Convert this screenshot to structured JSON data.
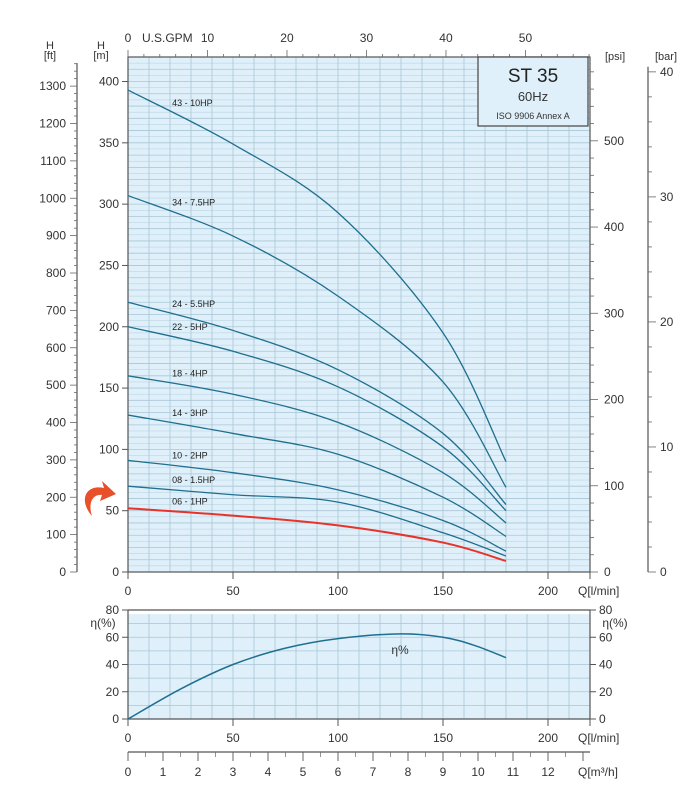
{
  "info_box": {
    "model": "ST 35",
    "frequency": "60Hz",
    "standard": "ISO 9906 Annex A"
  },
  "axes": {
    "h_ft": {
      "label_1": "H",
      "label_2": "[ft]",
      "range": [
        0,
        1300
      ],
      "ticks": [
        0,
        100,
        200,
        300,
        400,
        500,
        600,
        700,
        800,
        900,
        1000,
        1100,
        1200,
        1300
      ]
    },
    "h_m": {
      "label_1": "H",
      "label_2": "[m]",
      "range": [
        0,
        420
      ],
      "ticks": [
        0,
        50,
        100,
        150,
        200,
        250,
        300,
        350,
        400
      ]
    },
    "psi": {
      "label": "[psi]",
      "ticks": [
        0,
        100,
        200,
        300,
        400,
        500
      ]
    },
    "bar": {
      "label": "[bar]",
      "ticks": [
        0,
        10,
        20,
        30,
        40
      ]
    },
    "gpm": {
      "label": "U.S.GPM",
      "ticks": [
        0,
        10,
        20,
        30,
        40,
        50
      ]
    },
    "q_lmin": {
      "label": "Q[l/min]",
      "range": [
        0,
        220
      ],
      "ticks": [
        0,
        50,
        100,
        150,
        200
      ]
    },
    "q_m3h": {
      "label": "Q[m³/h]",
      "ticks": [
        0,
        1,
        2,
        3,
        4,
        5,
        6,
        7,
        8,
        9,
        10,
        11,
        12
      ]
    },
    "eta": {
      "label": "η(%)",
      "range": [
        0,
        80
      ],
      "ticks": [
        0,
        20,
        40,
        60,
        80
      ]
    }
  },
  "colors": {
    "plot_bg": "#dff0fa",
    "grid": "#a9c6d6",
    "curve": "#1f6f8f",
    "highlight": "#e8332a",
    "arrow": "#e8502a"
  },
  "highlight_marker": {
    "icon": "curved-arrow-icon",
    "points_to": "06 - 1HP"
  },
  "chart_data": [
    {
      "type": "line",
      "title": "ST 35",
      "xlabel": "Q[l/min]",
      "ylabel": "H [m]",
      "xlim": [
        0,
        220
      ],
      "ylim": [
        0,
        420
      ],
      "grid": true,
      "x": [
        0,
        50,
        100,
        150,
        180
      ],
      "series": [
        {
          "name": "43 - 10HP",
          "values": [
            393,
            349,
            293,
            195,
            90
          ]
        },
        {
          "name": "34 - 7.5HP",
          "values": [
            307,
            274,
            225,
            155,
            69
          ]
        },
        {
          "name": "24 - 5.5HP",
          "values": [
            220,
            197,
            165,
            113,
            55
          ]
        },
        {
          "name": "22 - 5HP",
          "values": [
            200,
            180,
            151,
            102,
            50
          ]
        },
        {
          "name": "18 - 4HP",
          "values": [
            160,
            145,
            122,
            81,
            40
          ]
        },
        {
          "name": "14 - 3HP",
          "values": [
            128,
            113,
            96,
            61,
            29
          ]
        },
        {
          "name": "10 - 2HP",
          "values": [
            91,
            81,
            67,
            42,
            17
          ]
        },
        {
          "name": "08 - 1.5HP",
          "values": [
            70,
            63,
            57,
            32,
            13
          ]
        },
        {
          "name": "06 - 1HP",
          "values": [
            52,
            46,
            38,
            24,
            9
          ],
          "highlighted": true
        }
      ]
    },
    {
      "type": "line",
      "xlabel": "Q[l/min]",
      "ylabel": "η(%)",
      "xlim": [
        0,
        220
      ],
      "ylim": [
        0,
        80
      ],
      "grid": true,
      "x": [
        0,
        25,
        50,
        75,
        100,
        130,
        150,
        165,
        180
      ],
      "series": [
        {
          "name": "η%",
          "values": [
            0,
            22,
            40,
            52,
            59,
            62.5,
            60,
            54,
            45
          ]
        }
      ]
    }
  ]
}
